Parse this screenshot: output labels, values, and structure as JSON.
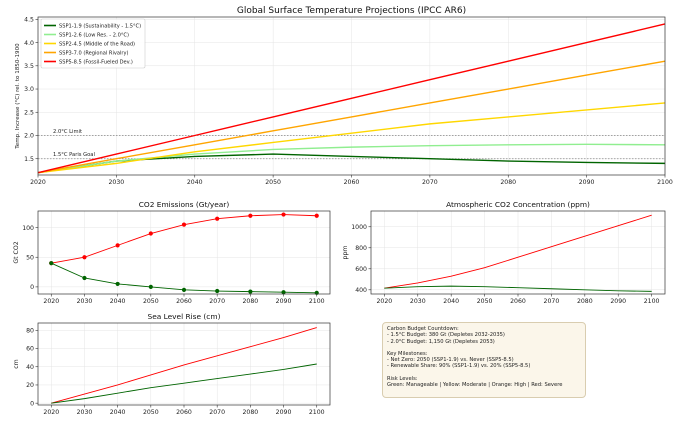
{
  "chart_data": [
    {
      "id": "main",
      "type": "line",
      "title": "Global Surface Temperature Projections (IPCC AR6)",
      "xlabel": "",
      "ylabel": "Temp. Increase (°C) rel. to 1850-1900",
      "xlim": [
        2020,
        2100
      ],
      "ylim": [
        1.15,
        4.55
      ],
      "x_ticks": [
        "2020",
        "2030",
        "2040",
        "2050",
        "2060",
        "2070",
        "2080",
        "2090",
        "2100"
      ],
      "y_ticks": [
        "1.5",
        "2.0",
        "2.5",
        "3.0",
        "3.5",
        "4.0",
        "4.5"
      ],
      "grid": true,
      "legend": "top-left",
      "reference_lines": [
        {
          "label": "2.0°C Limit",
          "y": 2.0
        },
        {
          "label": "1.5°C Paris Goal",
          "y": 1.5
        }
      ],
      "x": [
        2020,
        2030,
        2040,
        2050,
        2060,
        2070,
        2080,
        2090,
        2100
      ],
      "series": [
        {
          "name": "SSP1-1.9 (Sustainability - 1.5°C)",
          "color": "#006400",
          "values": [
            1.2,
            1.45,
            1.55,
            1.6,
            1.55,
            1.5,
            1.45,
            1.42,
            1.4
          ]
        },
        {
          "name": "SSP1-2.6 (Low Res. - 2.0°C)",
          "color": "#90ee90",
          "values": [
            1.2,
            1.45,
            1.6,
            1.7,
            1.75,
            1.78,
            1.8,
            1.81,
            1.8
          ]
        },
        {
          "name": "SSP2-4.5 (Middle of the Road)",
          "color": "#ffd700",
          "values": [
            1.2,
            1.4,
            1.65,
            1.85,
            2.05,
            2.25,
            2.4,
            2.55,
            2.7
          ]
        },
        {
          "name": "SSP3-7.0 (Regional Rivalry)",
          "color": "#ffa500",
          "values": [
            1.2,
            1.5,
            1.8,
            2.1,
            2.4,
            2.7,
            3.0,
            3.3,
            3.6
          ]
        },
        {
          "name": "SSP5-8.5 (Fossil-Fueled Dev.)",
          "color": "#ff0000",
          "values": [
            1.2,
            1.6,
            2.0,
            2.4,
            2.8,
            3.2,
            3.6,
            4.0,
            4.4
          ]
        }
      ]
    },
    {
      "id": "emissions",
      "type": "line",
      "title": "CO2 Emissions (Gt/year)",
      "xlabel": "",
      "ylabel": "Gt CO2",
      "xlim": [
        2016,
        2104
      ],
      "ylim": [
        -12,
        128
      ],
      "x_ticks": [
        "2020",
        "2030",
        "2040",
        "2050",
        "2060",
        "2070",
        "2080",
        "2090",
        "2100"
      ],
      "y_ticks": [
        "0",
        "50",
        "100"
      ],
      "grid": true,
      "x": [
        2020,
        2030,
        2040,
        2050,
        2060,
        2070,
        2080,
        2090,
        2100
      ],
      "series": [
        {
          "name": "SSP5-8.5",
          "color": "#ff0000",
          "marker": "circle",
          "values": [
            40,
            50,
            70,
            90,
            105,
            115,
            120,
            122,
            120
          ]
        },
        {
          "name": "SSP1-1.9",
          "color": "#006400",
          "marker": "circle",
          "values": [
            40,
            15,
            5,
            0,
            -5,
            -7,
            -8,
            -9,
            -10
          ]
        }
      ]
    },
    {
      "id": "concentration",
      "type": "line",
      "title": "Atmospheric CO2 Concentration (ppm)",
      "xlabel": "",
      "ylabel": "ppm",
      "xlim": [
        2016,
        2104
      ],
      "ylim": [
        360,
        1150
      ],
      "x_ticks": [
        "2020",
        "2030",
        "2040",
        "2050",
        "2060",
        "2070",
        "2080",
        "2090",
        "2100"
      ],
      "y_ticks": [
        "400",
        "600",
        "800",
        "1000"
      ],
      "grid": true,
      "x": [
        2020,
        2030,
        2040,
        2050,
        2060,
        2070,
        2080,
        2090,
        2100
      ],
      "series": [
        {
          "name": "SSP5-8.5",
          "color": "#ff0000",
          "values": [
            415,
            465,
            530,
            610,
            710,
            810,
            910,
            1010,
            1110
          ]
        },
        {
          "name": "SSP1-1.9",
          "color": "#006400",
          "values": [
            415,
            430,
            435,
            430,
            420,
            410,
            400,
            390,
            385
          ]
        }
      ]
    },
    {
      "id": "sealevel",
      "type": "line",
      "title": "Sea Level Rise (cm)",
      "xlabel": "",
      "ylabel": "cm",
      "xlim": [
        2016,
        2104
      ],
      "ylim": [
        -2,
        88
      ],
      "x_ticks": [
        "2020",
        "2030",
        "2040",
        "2050",
        "2060",
        "2070",
        "2080",
        "2090",
        "2100"
      ],
      "y_ticks": [
        "0",
        "20",
        "40",
        "60",
        "80"
      ],
      "grid": true,
      "x": [
        2020,
        2030,
        2040,
        2050,
        2060,
        2070,
        2080,
        2090,
        2100
      ],
      "series": [
        {
          "name": "SSP5-8.5",
          "color": "#ff0000",
          "values": [
            0,
            10,
            20,
            31,
            42,
            52,
            62,
            72,
            83
          ]
        },
        {
          "name": "SSP1-1.9",
          "color": "#006400",
          "values": [
            0,
            5,
            11,
            17,
            22,
            27,
            32,
            37,
            43
          ]
        }
      ]
    }
  ],
  "info_box": {
    "lines": [
      "Carbon Budget Countdown:",
      "- 1.5°C Budget: 380 Gt (Depletes 2032-2035)",
      "- 2.0°C Budget: 1,150 Gt (Depletes 2053)",
      "",
      "Key Milestones:",
      "- Net Zero: 2050 (SSP1-1.9) vs. Never (SSP5-8.5)",
      "- Renewable Share: 90% (SSP1-1.9) vs. 20% (SSP5-8.5)",
      "",
      "Risk Levels:",
      "Green: Manageable | Yellow: Moderate | Orange: High | Red: Severe"
    ]
  }
}
